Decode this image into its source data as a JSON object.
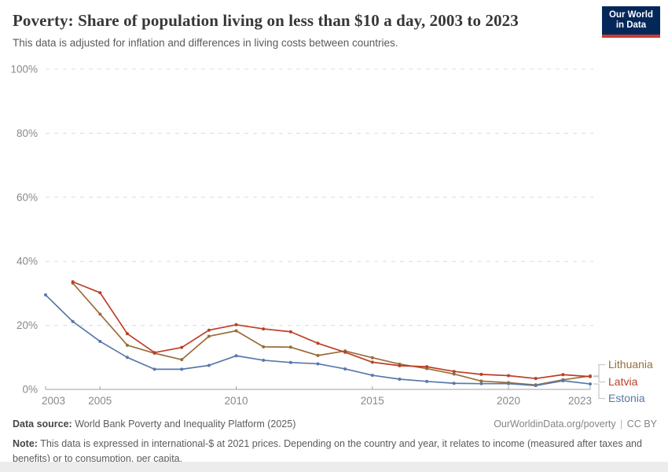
{
  "header": {
    "title": "Poverty: Share of population living on less than $10 a day, 2003 to 2023",
    "subtitle": "This data is adjusted for inflation and differences in living costs between countries.",
    "logo_text": "Our World\nin Data",
    "logo_bg": "#04275a",
    "logo_bar": "#d0392e"
  },
  "chart_data": {
    "type": "line",
    "title": "Poverty: Share of population living on less than $10 a day, 2003 to 2023",
    "x": [
      2003,
      2004,
      2005,
      2006,
      2007,
      2008,
      2009,
      2010,
      2011,
      2012,
      2013,
      2014,
      2015,
      2016,
      2017,
      2018,
      2019,
      2020,
      2021,
      2022,
      2023
    ],
    "x_tick_labels": [
      "2003",
      "2005",
      "2010",
      "2015",
      "2020",
      "2023"
    ],
    "x_tick_years": [
      2003,
      2005,
      2010,
      2015,
      2020,
      2023
    ],
    "y_tick_labels": [
      "0%",
      "20%",
      "40%",
      "60%",
      "80%",
      "100%"
    ],
    "y_tick_values": [
      0,
      20,
      40,
      60,
      80,
      100
    ],
    "ylim": [
      0,
      100
    ],
    "grid": "horizontal-dashed",
    "legend_position": "right-of-line-ends",
    "series": [
      {
        "name": "Lithuania",
        "color": "#996D39",
        "values": [
          null,
          33.2,
          23.5,
          13.8,
          11.3,
          9.3,
          16.6,
          18.3,
          13.3,
          13.2,
          10.6,
          12.0,
          9.9,
          7.9,
          6.5,
          4.8,
          2.6,
          2.1,
          1.4,
          3.0,
          4.2
        ]
      },
      {
        "name": "Latvia",
        "color": "#BC3E26",
        "values": [
          null,
          33.6,
          30.2,
          17.4,
          11.5,
          13.1,
          18.5,
          20.2,
          18.9,
          18.0,
          14.4,
          11.6,
          8.5,
          7.4,
          7.1,
          5.6,
          4.7,
          4.3,
          3.4,
          4.6,
          4.0
        ]
      },
      {
        "name": "Estonia",
        "color": "#5878A9",
        "values": [
          29.5,
          21.2,
          15.0,
          10.0,
          6.3,
          6.3,
          7.5,
          10.5,
          9.1,
          8.4,
          8.0,
          6.4,
          4.4,
          3.2,
          2.5,
          1.9,
          1.8,
          1.8,
          1.2,
          2.7,
          1.7
        ]
      }
    ]
  },
  "footer": {
    "datasource_label": "Data source:",
    "datasource": "World Bank Poverty and Inequality Platform (2025)",
    "link": "OurWorldinData.org/poverty",
    "separator": "|",
    "license": "CC BY",
    "note_label": "Note:",
    "note": "This data is expressed in international-$ at 2021 prices. Depending on the country and year, it relates to income (measured after taxes and benefits) or to consumption, per capita."
  }
}
